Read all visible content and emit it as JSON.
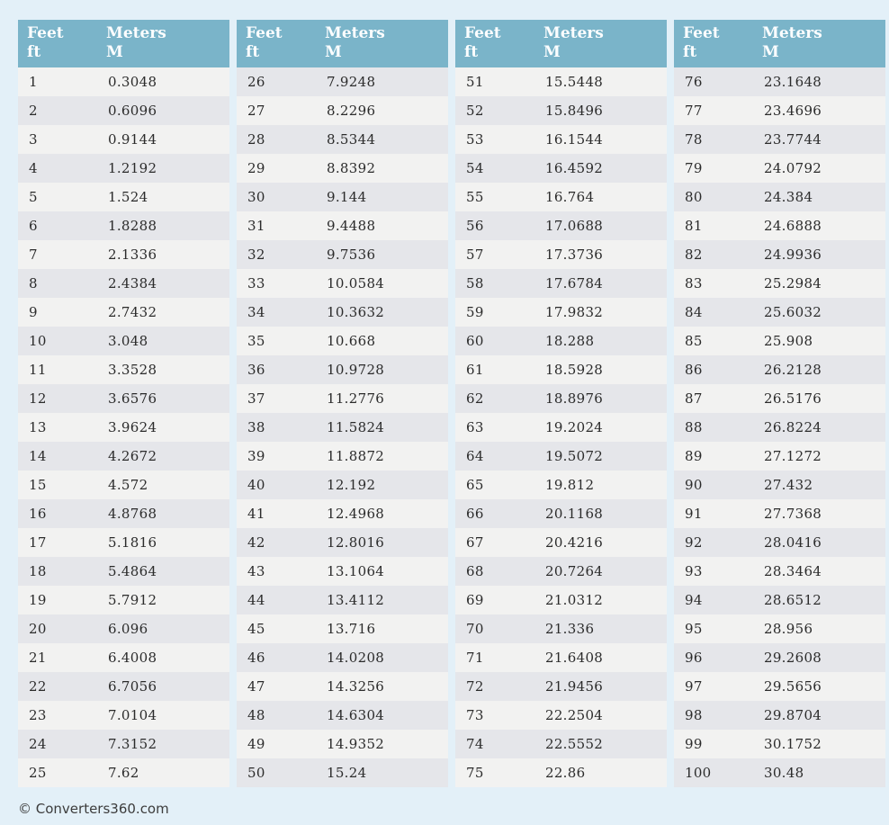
{
  "page": {
    "background_color": "#e3f0f8",
    "footer_text": "© Converters360.com"
  },
  "style": {
    "header_bg": "#7ab4c9",
    "header_text_color": "#fbfdfe",
    "row_light": "#f2f2f1",
    "row_dark": "#e5e6ea",
    "cell_text_color": "#2b2b2b"
  },
  "header": {
    "feet_label": "Feet",
    "feet_unit": "ft",
    "meters_label": "Meters",
    "meters_unit": "M"
  },
  "chart_data": {
    "type": "table",
    "columns": [
      "Feet ft",
      "Meters M"
    ],
    "table_count": 4,
    "rows_per_table": 25,
    "rows": [
      [
        "1",
        "0.3048"
      ],
      [
        "2",
        "0.6096"
      ],
      [
        "3",
        "0.9144"
      ],
      [
        "4",
        "1.2192"
      ],
      [
        "5",
        "1.524"
      ],
      [
        "6",
        "1.8288"
      ],
      [
        "7",
        "2.1336"
      ],
      [
        "8",
        "2.4384"
      ],
      [
        "9",
        "2.7432"
      ],
      [
        "10",
        "3.048"
      ],
      [
        "11",
        "3.3528"
      ],
      [
        "12",
        "3.6576"
      ],
      [
        "13",
        "3.9624"
      ],
      [
        "14",
        "4.2672"
      ],
      [
        "15",
        "4.572"
      ],
      [
        "16",
        "4.8768"
      ],
      [
        "17",
        "5.1816"
      ],
      [
        "18",
        "5.4864"
      ],
      [
        "19",
        "5.7912"
      ],
      [
        "20",
        "6.096"
      ],
      [
        "21",
        "6.4008"
      ],
      [
        "22",
        "6.7056"
      ],
      [
        "23",
        "7.0104"
      ],
      [
        "24",
        "7.3152"
      ],
      [
        "25",
        "7.62"
      ],
      [
        "26",
        "7.9248"
      ],
      [
        "27",
        "8.2296"
      ],
      [
        "28",
        "8.5344"
      ],
      [
        "29",
        "8.8392"
      ],
      [
        "30",
        "9.144"
      ],
      [
        "31",
        "9.4488"
      ],
      [
        "32",
        "9.7536"
      ],
      [
        "33",
        "10.0584"
      ],
      [
        "34",
        "10.3632"
      ],
      [
        "35",
        "10.668"
      ],
      [
        "36",
        "10.9728"
      ],
      [
        "37",
        "11.2776"
      ],
      [
        "38",
        "11.5824"
      ],
      [
        "39",
        "11.8872"
      ],
      [
        "40",
        "12.192"
      ],
      [
        "41",
        "12.4968"
      ],
      [
        "42",
        "12.8016"
      ],
      [
        "43",
        "13.1064"
      ],
      [
        "44",
        "13.4112"
      ],
      [
        "45",
        "13.716"
      ],
      [
        "46",
        "14.0208"
      ],
      [
        "47",
        "14.3256"
      ],
      [
        "48",
        "14.6304"
      ],
      [
        "49",
        "14.9352"
      ],
      [
        "50",
        "15.24"
      ],
      [
        "51",
        "15.5448"
      ],
      [
        "52",
        "15.8496"
      ],
      [
        "53",
        "16.1544"
      ],
      [
        "54",
        "16.4592"
      ],
      [
        "55",
        "16.764"
      ],
      [
        "56",
        "17.0688"
      ],
      [
        "57",
        "17.3736"
      ],
      [
        "58",
        "17.6784"
      ],
      [
        "59",
        "17.9832"
      ],
      [
        "60",
        "18.288"
      ],
      [
        "61",
        "18.5928"
      ],
      [
        "62",
        "18.8976"
      ],
      [
        "63",
        "19.2024"
      ],
      [
        "64",
        "19.5072"
      ],
      [
        "65",
        "19.812"
      ],
      [
        "66",
        "20.1168"
      ],
      [
        "67",
        "20.4216"
      ],
      [
        "68",
        "20.7264"
      ],
      [
        "69",
        "21.0312"
      ],
      [
        "70",
        "21.336"
      ],
      [
        "71",
        "21.6408"
      ],
      [
        "72",
        "21.9456"
      ],
      [
        "73",
        "22.2504"
      ],
      [
        "74",
        "22.5552"
      ],
      [
        "75",
        "22.86"
      ],
      [
        "76",
        "23.1648"
      ],
      [
        "77",
        "23.4696"
      ],
      [
        "78",
        "23.7744"
      ],
      [
        "79",
        "24.0792"
      ],
      [
        "80",
        "24.384"
      ],
      [
        "81",
        "24.6888"
      ],
      [
        "82",
        "24.9936"
      ],
      [
        "83",
        "25.2984"
      ],
      [
        "84",
        "25.6032"
      ],
      [
        "85",
        "25.908"
      ],
      [
        "86",
        "26.2128"
      ],
      [
        "87",
        "26.5176"
      ],
      [
        "88",
        "26.8224"
      ],
      [
        "89",
        "27.1272"
      ],
      [
        "90",
        "27.432"
      ],
      [
        "91",
        "27.7368"
      ],
      [
        "92",
        "28.0416"
      ],
      [
        "93",
        "28.3464"
      ],
      [
        "94",
        "28.6512"
      ],
      [
        "95",
        "28.956"
      ],
      [
        "96",
        "29.2608"
      ],
      [
        "97",
        "29.5656"
      ],
      [
        "98",
        "29.8704"
      ],
      [
        "99",
        "30.1752"
      ],
      [
        "100",
        "30.48"
      ]
    ]
  }
}
